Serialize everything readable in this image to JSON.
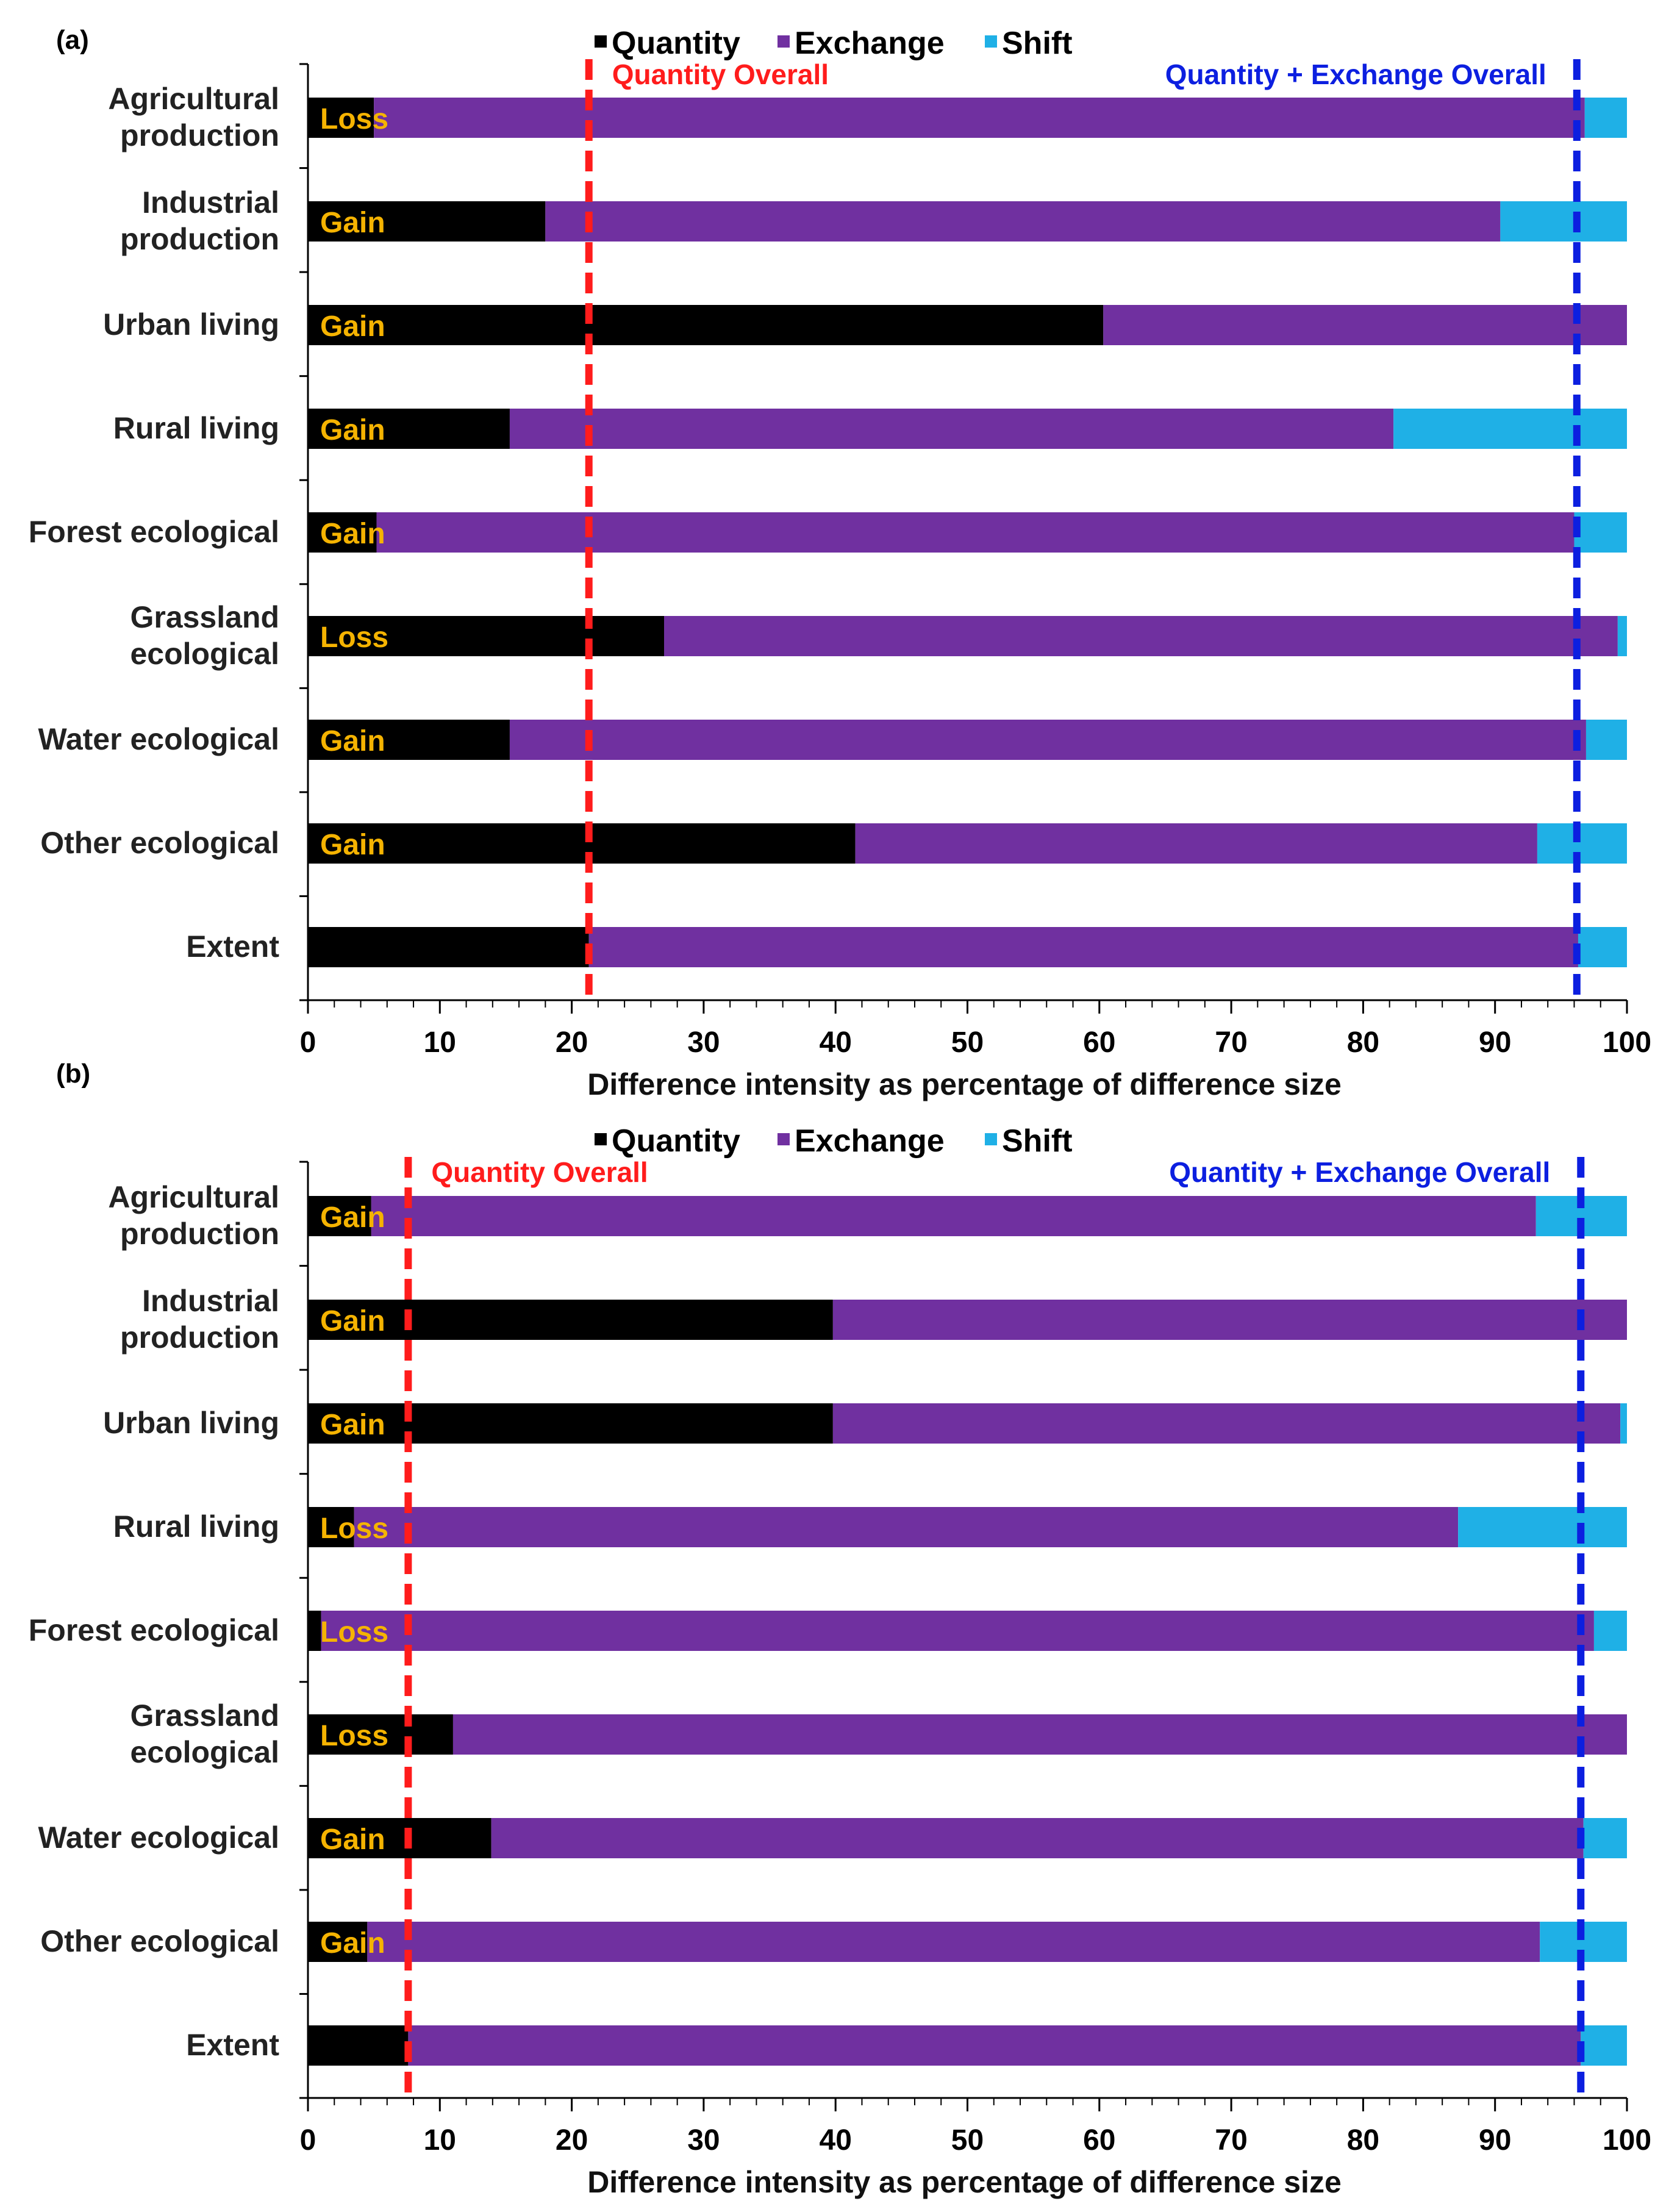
{
  "colors": {
    "quantity": "#000000",
    "exchange": "#7030A0",
    "shift": "#1FB0E6",
    "quantity_overall": "#FF1C1C",
    "qe_overall": "#0C1FE0",
    "direction_label": "#F5B301"
  },
  "chart_data": [
    {
      "type": "bar",
      "orientation": "horizontal",
      "stacked": true,
      "panel_label": "(a)",
      "legend": [
        "Quantity",
        "Exchange",
        "Shift"
      ],
      "categories": [
        [
          "Agricultural",
          "production"
        ],
        [
          "Industrial",
          "production"
        ],
        [
          "Urban living"
        ],
        [
          "Rural living"
        ],
        [
          "Forest ecological"
        ],
        [
          "Grassland",
          "ecological"
        ],
        [
          "Water ecological"
        ],
        [
          "Other ecological"
        ],
        [
          "Extent"
        ]
      ],
      "direction": [
        "Loss",
        "Gain",
        "Gain",
        "Gain",
        "Gain",
        "Loss",
        "Gain",
        "Gain",
        ""
      ],
      "series": [
        {
          "name": "Quantity",
          "values": [
            5,
            18,
            60.3,
            15.3,
            5.2,
            27,
            15.3,
            41.5,
            21.3
          ]
        },
        {
          "name": "Exchange",
          "values": [
            91.8,
            72.4,
            39.7,
            67,
            90.8,
            72.3,
            81.6,
            51.7,
            75
          ]
        },
        {
          "name": "Shift",
          "values": [
            3.2,
            9.6,
            0,
            17.7,
            4,
            0.7,
            3.1,
            6.8,
            3.7
          ]
        }
      ],
      "reference_lines": [
        {
          "name": "Quantity Overall",
          "value": 21.3
        },
        {
          "name": "Quantity + Exchange Overall",
          "value": 96.2
        }
      ],
      "xlabel": "Difference intensity as percentage of difference size",
      "xlim": [
        0,
        100
      ],
      "xticks": [
        0,
        10,
        20,
        30,
        40,
        50,
        60,
        70,
        80,
        90,
        100
      ]
    },
    {
      "type": "bar",
      "orientation": "horizontal",
      "stacked": true,
      "panel_label": "(b)",
      "legend": [
        "Quantity",
        "Exchange",
        "Shift"
      ],
      "categories": [
        [
          "Agricultural",
          "production"
        ],
        [
          "Industrial",
          "production"
        ],
        [
          "Urban living"
        ],
        [
          "Rural living"
        ],
        [
          "Forest ecological"
        ],
        [
          "Grassland",
          "ecological"
        ],
        [
          "Water ecological"
        ],
        [
          "Other ecological"
        ],
        [
          "Extent"
        ]
      ],
      "direction": [
        "Gain",
        "Gain",
        "Gain",
        "Loss",
        "Loss",
        "Loss",
        "Gain",
        "Gain",
        ""
      ],
      "series": [
        {
          "name": "Quantity",
          "values": [
            4.8,
            39.8,
            39.8,
            3.5,
            1,
            11,
            13.9,
            4.5,
            7.6
          ]
        },
        {
          "name": "Exchange",
          "values": [
            88.3,
            60.2,
            59.7,
            83.7,
            96.5,
            89,
            82.8,
            88.9,
            88.9
          ]
        },
        {
          "name": "Shift",
          "values": [
            6.9,
            0,
            0.5,
            12.8,
            2.5,
            0,
            3.3,
            6.6,
            3.5
          ]
        }
      ],
      "reference_lines": [
        {
          "name": "Quantity Overall",
          "value": 7.6
        },
        {
          "name": "Quantity + Exchange Overall",
          "value": 96.5
        }
      ],
      "xlabel": "Difference intensity as percentage of difference size",
      "xlim": [
        0,
        100
      ],
      "xticks": [
        0,
        10,
        20,
        30,
        40,
        50,
        60,
        70,
        80,
        90,
        100
      ]
    }
  ]
}
